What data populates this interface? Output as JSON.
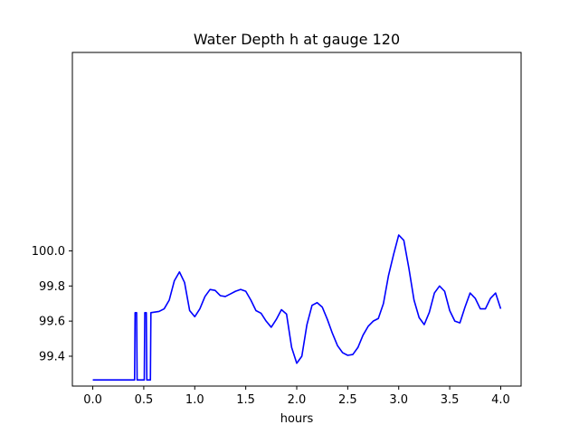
{
  "chart_data": {
    "type": "line",
    "title": "Water Depth h at gauge 120",
    "xlabel": "hours",
    "ylabel": "",
    "xlim": [
      -0.2,
      4.2
    ],
    "ylim": [
      99.23,
      101.13
    ],
    "xticks": [
      0.0,
      0.5,
      1.0,
      1.5,
      2.0,
      2.5,
      3.0,
      3.5,
      4.0
    ],
    "xtick_labels": [
      "0.0",
      "0.5",
      "1.0",
      "1.5",
      "2.0",
      "2.5",
      "3.0",
      "3.5",
      "4.0"
    ],
    "yticks": [
      99.4,
      99.6,
      99.8,
      100.0
    ],
    "ytick_labels": [
      "99.4",
      "99.6",
      "99.8",
      "100.0"
    ],
    "grid": false,
    "series": [
      {
        "color": "#0000ff",
        "x": [
          0.0,
          0.41,
          0.415,
          0.43,
          0.435,
          0.505,
          0.51,
          0.525,
          0.53,
          0.565,
          0.57,
          0.65,
          0.7,
          0.75,
          0.8,
          0.85,
          0.9,
          0.95,
          1.0,
          1.05,
          1.1,
          1.15,
          1.2,
          1.25,
          1.3,
          1.35,
          1.4,
          1.45,
          1.5,
          1.55,
          1.6,
          1.65,
          1.7,
          1.75,
          1.8,
          1.85,
          1.9,
          1.95,
          2.0,
          2.05,
          2.1,
          2.15,
          2.2,
          2.25,
          2.3,
          2.35,
          2.4,
          2.45,
          2.5,
          2.55,
          2.6,
          2.65,
          2.7,
          2.75,
          2.8,
          2.85,
          2.9,
          2.95,
          3.0,
          3.05,
          3.1,
          3.15,
          3.2,
          3.25,
          3.3,
          3.35,
          3.4,
          3.45,
          3.5,
          3.55,
          3.6,
          3.65,
          3.7,
          3.75,
          3.8,
          3.85,
          3.9,
          3.95,
          4.0
        ],
        "y": [
          99.265,
          99.265,
          99.648,
          99.648,
          99.265,
          99.265,
          99.648,
          99.648,
          99.265,
          99.265,
          99.648,
          99.655,
          99.67,
          99.72,
          99.83,
          99.88,
          99.82,
          99.66,
          99.625,
          99.67,
          99.74,
          99.78,
          99.775,
          99.745,
          99.74,
          99.755,
          99.77,
          99.78,
          99.77,
          99.72,
          99.66,
          99.645,
          99.6,
          99.565,
          99.61,
          99.665,
          99.64,
          99.45,
          99.36,
          99.4,
          99.58,
          99.69,
          99.705,
          99.68,
          99.61,
          99.53,
          99.46,
          99.42,
          99.405,
          99.41,
          99.45,
          99.52,
          99.57,
          99.6,
          99.615,
          99.7,
          99.86,
          99.98,
          100.09,
          100.06,
          99.9,
          99.72,
          99.62,
          99.58,
          99.65,
          99.76,
          99.8,
          99.77,
          99.66,
          99.6,
          99.59,
          99.68,
          99.76,
          99.73,
          99.67,
          99.67,
          99.73,
          99.76,
          99.67
        ]
      }
    ]
  }
}
